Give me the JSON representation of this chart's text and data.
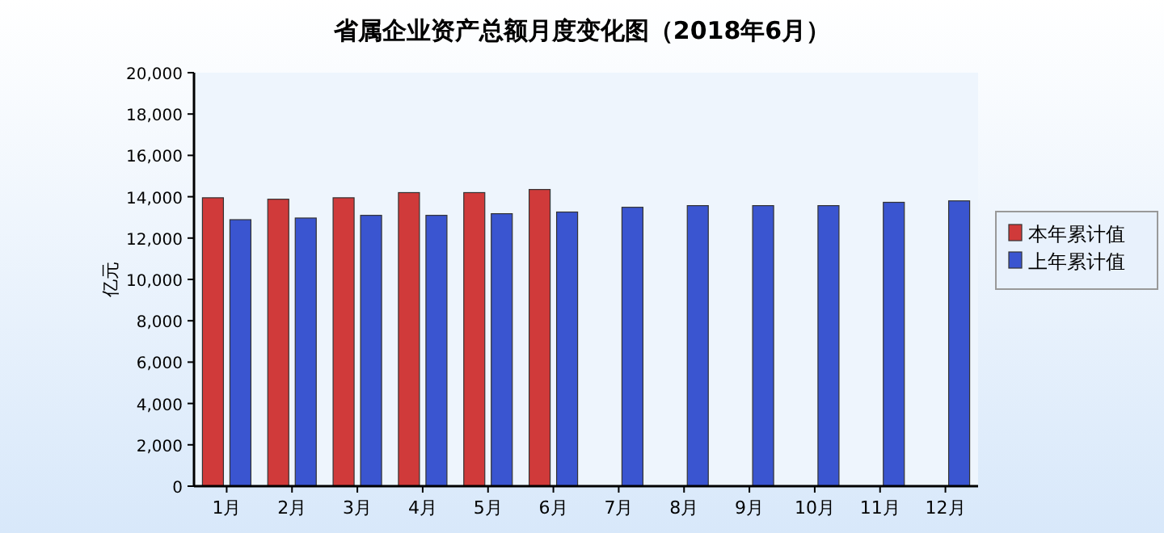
{
  "chart_data": {
    "type": "bar",
    "title": "省属企业资产总额月度变化图（2018年6月）",
    "ylabel": "亿元",
    "categories": [
      "1月",
      "2月",
      "3月",
      "4月",
      "5月",
      "6月",
      "7月",
      "8月",
      "9月",
      "10月",
      "11月",
      "12月"
    ],
    "series": [
      {
        "name": "本年累计值",
        "color": "#d03a3a",
        "values": [
          13950,
          13880,
          13950,
          14200,
          14200,
          14350,
          null,
          null,
          null,
          null,
          null,
          null
        ]
      },
      {
        "name": "上年累计值",
        "color": "#3a55d0",
        "values": [
          12890,
          12970,
          13100,
          13100,
          13180,
          13260,
          13490,
          13570,
          13570,
          13570,
          13730,
          13800
        ]
      }
    ],
    "ylim": [
      0,
      20000
    ],
    "yticks": [
      {
        "value": 0,
        "label": "0"
      },
      {
        "value": 2000,
        "label": "2,000"
      },
      {
        "value": 4000,
        "label": "4,000"
      },
      {
        "value": 6000,
        "label": "6,000"
      },
      {
        "value": 8000,
        "label": "8,000"
      },
      {
        "value": 10000,
        "label": "10,000"
      },
      {
        "value": 12000,
        "label": "12,000"
      },
      {
        "value": 14000,
        "label": "14,000"
      },
      {
        "value": 16000,
        "label": "16,000"
      },
      {
        "value": 18000,
        "label": "18,000"
      },
      {
        "value": 20000,
        "label": "20,000"
      }
    ],
    "legend": "right"
  }
}
